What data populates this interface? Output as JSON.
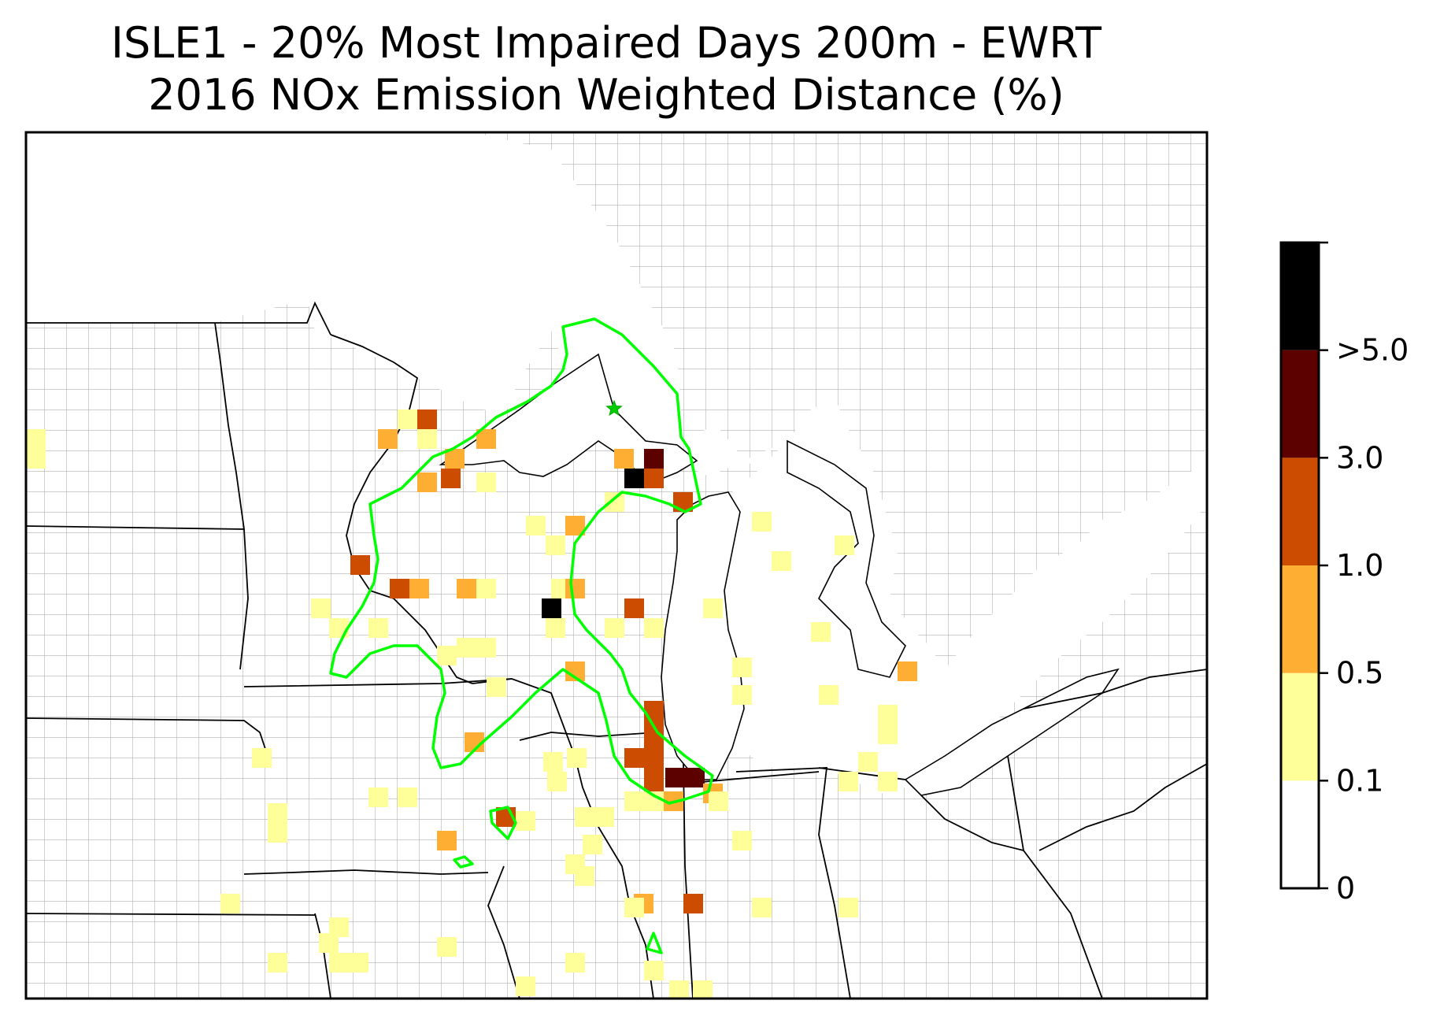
{
  "title_line1": "ISLE1 - 20% Most Impaired Days 200m - EWRT",
  "title_line2": "2016 NOx Emission Weighted Distance (%)",
  "colorbar": {
    "bins": [
      {
        "label": "0",
        "color": "#ffffff"
      },
      {
        "label": "0.1",
        "color": "#ffff99"
      },
      {
        "label": "0.5",
        "color": "#fdae33"
      },
      {
        "label": "1.0",
        "color": "#cc4c02"
      },
      {
        "label": "3.0",
        "color": "#5c0000"
      },
      {
        "label": ">5.0",
        "color": "#000000"
      }
    ]
  },
  "colors": {
    "contour": "#00ff00",
    "state_border": "#000000",
    "county_border": "#9a9a9a"
  },
  "site_marker": "star-icon"
}
